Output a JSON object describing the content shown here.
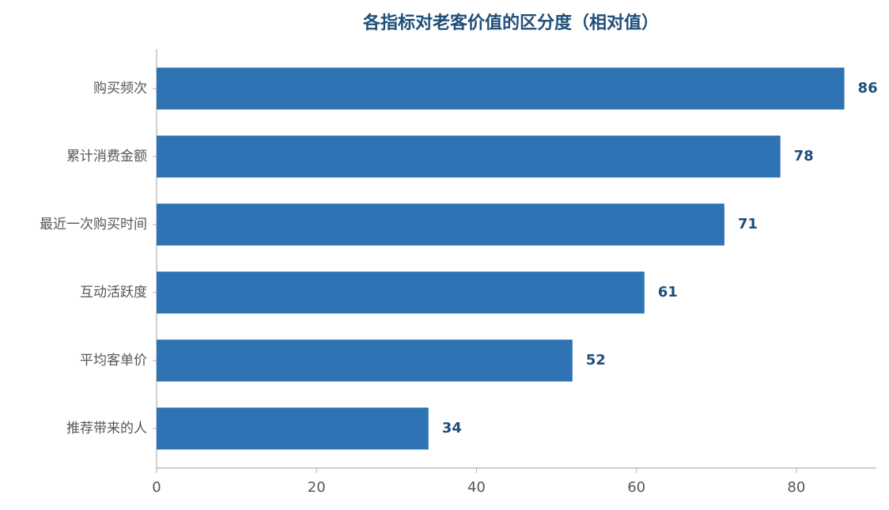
{
  "chart_data": {
    "type": "bar",
    "orientation": "horizontal",
    "title": "各指标对老客价值的区分度（相对值）",
    "categories": [
      "购买频次",
      "累计消费金额",
      "最近一次购买时间",
      "互动活跃度",
      "平均客单价",
      "推荐带来的人"
    ],
    "values": [
      86,
      78,
      71,
      61,
      52,
      34
    ],
    "color": "#2e74b5",
    "xlim": [
      0,
      90
    ],
    "xticks": [
      0,
      20,
      40,
      60,
      80
    ],
    "grid": false
  }
}
